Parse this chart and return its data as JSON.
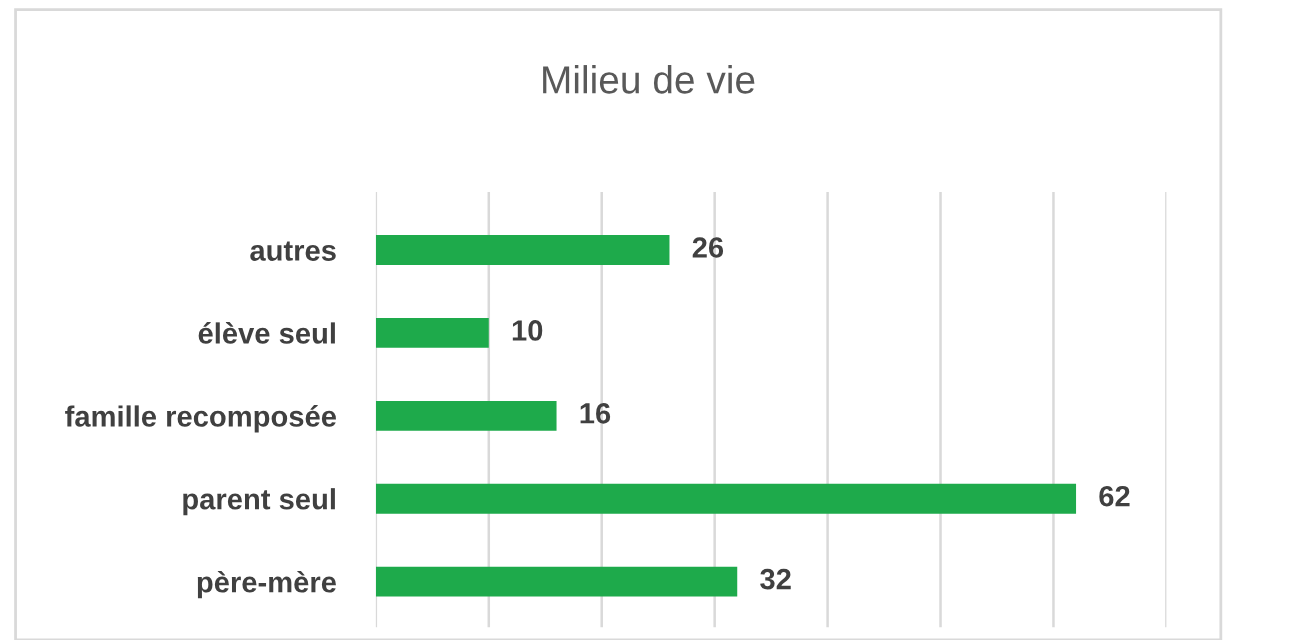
{
  "chart_data": {
    "type": "bar",
    "orientation": "horizontal",
    "title": "Milieu de vie",
    "categories": [
      "autres",
      "élève seul",
      "famille recomposée",
      "parent seul",
      "père-mère"
    ],
    "values": [
      26,
      10,
      16,
      62,
      32
    ],
    "color": "#1eaa4b",
    "xlim": [
      0,
      70
    ],
    "xticks": [
      {
        "value": 0,
        "label": null
      },
      {
        "value": 10,
        "label": null
      },
      {
        "value": 20,
        "label": null
      },
      {
        "value": 30,
        "label": null
      },
      {
        "value": 40,
        "label": null
      },
      {
        "value": 50,
        "label": null
      },
      {
        "value": 60,
        "label": null
      },
      {
        "value": 70,
        "label": null
      }
    ],
    "grid": "x",
    "data_labels": true
  }
}
